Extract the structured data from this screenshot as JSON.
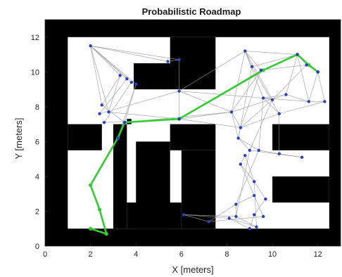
{
  "chart_data": {
    "type": "scatter",
    "title": "Probabilistic Roadmap",
    "xlabel": "X [meters]",
    "ylabel": "Y [meters]",
    "xlim": [
      0,
      13
    ],
    "ylim": [
      0,
      13
    ],
    "xticks": [
      "0",
      "2",
      "4",
      "6",
      "8",
      "10",
      "12"
    ],
    "yticks": [
      "0",
      "2",
      "4",
      "6",
      "8",
      "10",
      "12"
    ],
    "grid": false,
    "colors": {
      "obstacle": "#000000",
      "free": "#ffffff",
      "edge": "#9a9a9a",
      "node": "#2a3fc4",
      "path": "#33cc33"
    },
    "obstacles": [
      [
        0,
        0,
        1,
        13
      ],
      [
        12.5,
        0,
        13,
        13
      ],
      [
        0,
        12,
        13,
        13
      ],
      [
        0,
        0,
        13,
        1
      ],
      [
        1,
        5.5,
        2.5,
        7
      ],
      [
        3,
        1,
        3.6,
        7
      ],
      [
        3.6,
        7,
        3.8,
        7.3
      ],
      [
        3.9,
        9,
        5.9,
        10.5
      ],
      [
        5.5,
        10.2,
        7.5,
        12
      ],
      [
        5.9,
        9,
        7.5,
        10.3
      ],
      [
        4,
        1,
        5.5,
        6
      ],
      [
        5.5,
        5.5,
        7.5,
        7
      ],
      [
        6,
        1,
        7.5,
        5.5
      ],
      [
        3.6,
        2.5,
        6,
        1
      ],
      [
        10,
        5.5,
        12.5,
        7
      ],
      [
        10,
        2.5,
        12.5,
        4
      ]
    ],
    "nodes": [
      [
        2,
        11.5
      ],
      [
        5.4,
        10.6
      ],
      [
        5.9,
        10.7
      ],
      [
        3.3,
        9.8
      ],
      [
        3.6,
        9.6
      ],
      [
        3.8,
        9.4
      ],
      [
        4,
        9.3
      ],
      [
        2.5,
        8.1
      ],
      [
        2.8,
        7.7
      ],
      [
        2.4,
        7.6
      ],
      [
        2.6,
        7.1
      ],
      [
        3.2,
        6.2
      ],
      [
        3.5,
        7.1
      ],
      [
        5.9,
        7.3
      ],
      [
        5.9,
        8.9
      ],
      [
        8.8,
        11.2
      ],
      [
        9.1,
        10.3
      ],
      [
        9.5,
        10.1
      ],
      [
        11.1,
        11
      ],
      [
        11.5,
        10.4
      ],
      [
        12,
        10
      ],
      [
        10.6,
        8.7
      ],
      [
        11.6,
        8.3
      ],
      [
        12.3,
        8.3
      ],
      [
        9.6,
        8.5
      ],
      [
        10,
        8.4
      ],
      [
        8.2,
        7.7
      ],
      [
        10.3,
        7.6
      ],
      [
        8.6,
        6.8
      ],
      [
        8.5,
        6.2
      ],
      [
        9.4,
        5.5
      ],
      [
        9,
        5.5
      ],
      [
        8.8,
        5.2
      ],
      [
        10.3,
        5.3
      ],
      [
        11.3,
        5.1
      ],
      [
        8.6,
        4.7
      ],
      [
        9.2,
        3.7
      ],
      [
        9.2,
        2.9
      ],
      [
        9.7,
        2.7
      ],
      [
        8.4,
        2.4
      ],
      [
        8.4,
        1.7
      ],
      [
        9.2,
        1.8
      ],
      [
        9.3,
        1.1
      ],
      [
        9,
        1
      ],
      [
        8.1,
        1.6
      ],
      [
        6.1,
        1.8
      ],
      [
        7.2,
        1.4
      ],
      [
        9.6,
        1.7
      ]
    ],
    "path": [
      [
        2,
        1
      ],
      [
        2.7,
        0.7
      ],
      [
        2.4,
        2.1
      ],
      [
        2,
        3.5
      ],
      [
        3.2,
        6.2
      ],
      [
        3.5,
        7.1
      ],
      [
        5.9,
        7.3
      ],
      [
        9.6,
        10.1
      ],
      [
        11.1,
        11
      ],
      [
        11.6,
        10.4
      ],
      [
        12,
        10
      ]
    ],
    "edges_sample": [
      [
        0,
        3
      ],
      [
        0,
        4
      ],
      [
        0,
        5
      ],
      [
        0,
        6
      ],
      [
        0,
        7
      ],
      [
        0,
        8
      ],
      [
        0,
        1
      ],
      [
        0,
        2
      ],
      [
        1,
        2
      ],
      [
        3,
        7
      ],
      [
        3,
        8
      ],
      [
        4,
        9
      ],
      [
        5,
        10
      ],
      [
        6,
        11
      ],
      [
        6,
        12
      ],
      [
        7,
        12
      ],
      [
        8,
        13
      ],
      [
        9,
        14
      ],
      [
        10,
        13
      ],
      [
        11,
        12
      ],
      [
        2,
        14
      ],
      [
        13,
        14
      ],
      [
        14,
        24
      ],
      [
        14,
        26
      ],
      [
        13,
        26
      ],
      [
        13,
        28
      ],
      [
        12,
        26
      ],
      [
        15,
        16
      ],
      [
        15,
        17
      ],
      [
        15,
        18
      ],
      [
        16,
        18
      ],
      [
        17,
        19
      ],
      [
        18,
        19
      ],
      [
        19,
        20
      ],
      [
        18,
        21
      ],
      [
        18,
        22
      ],
      [
        20,
        23
      ],
      [
        21,
        22
      ],
      [
        22,
        23
      ],
      [
        15,
        24
      ],
      [
        15,
        25
      ],
      [
        16,
        27
      ],
      [
        17,
        26
      ],
      [
        24,
        25
      ],
      [
        24,
        27
      ],
      [
        25,
        28
      ],
      [
        26,
        28
      ],
      [
        26,
        29
      ],
      [
        27,
        28
      ],
      [
        28,
        29
      ],
      [
        29,
        30
      ],
      [
        29,
        31
      ],
      [
        30,
        33
      ],
      [
        31,
        34
      ],
      [
        32,
        35
      ],
      [
        33,
        34
      ],
      [
        32,
        36
      ],
      [
        35,
        36
      ],
      [
        35,
        37
      ],
      [
        36,
        38
      ],
      [
        37,
        39
      ],
      [
        38,
        41
      ],
      [
        39,
        40
      ],
      [
        40,
        42
      ],
      [
        41,
        43
      ],
      [
        42,
        44
      ],
      [
        43,
        44
      ],
      [
        44,
        45
      ],
      [
        45,
        46
      ],
      [
        46,
        47
      ],
      [
        40,
        45
      ],
      [
        39,
        46
      ],
      [
        37,
        47
      ],
      [
        36,
        42
      ],
      [
        31,
        40
      ],
      [
        30,
        39
      ],
      [
        24,
        30
      ],
      [
        25,
        31
      ],
      [
        27,
        33
      ],
      [
        21,
        24
      ],
      [
        17,
        28
      ],
      [
        16,
        29
      ],
      [
        15,
        26
      ],
      [
        13,
        17
      ],
      [
        14,
        15
      ],
      [
        19,
        25
      ],
      [
        20,
        22
      ],
      [
        23,
        27
      ],
      [
        22,
        24
      ],
      [
        21,
        26
      ]
    ]
  }
}
